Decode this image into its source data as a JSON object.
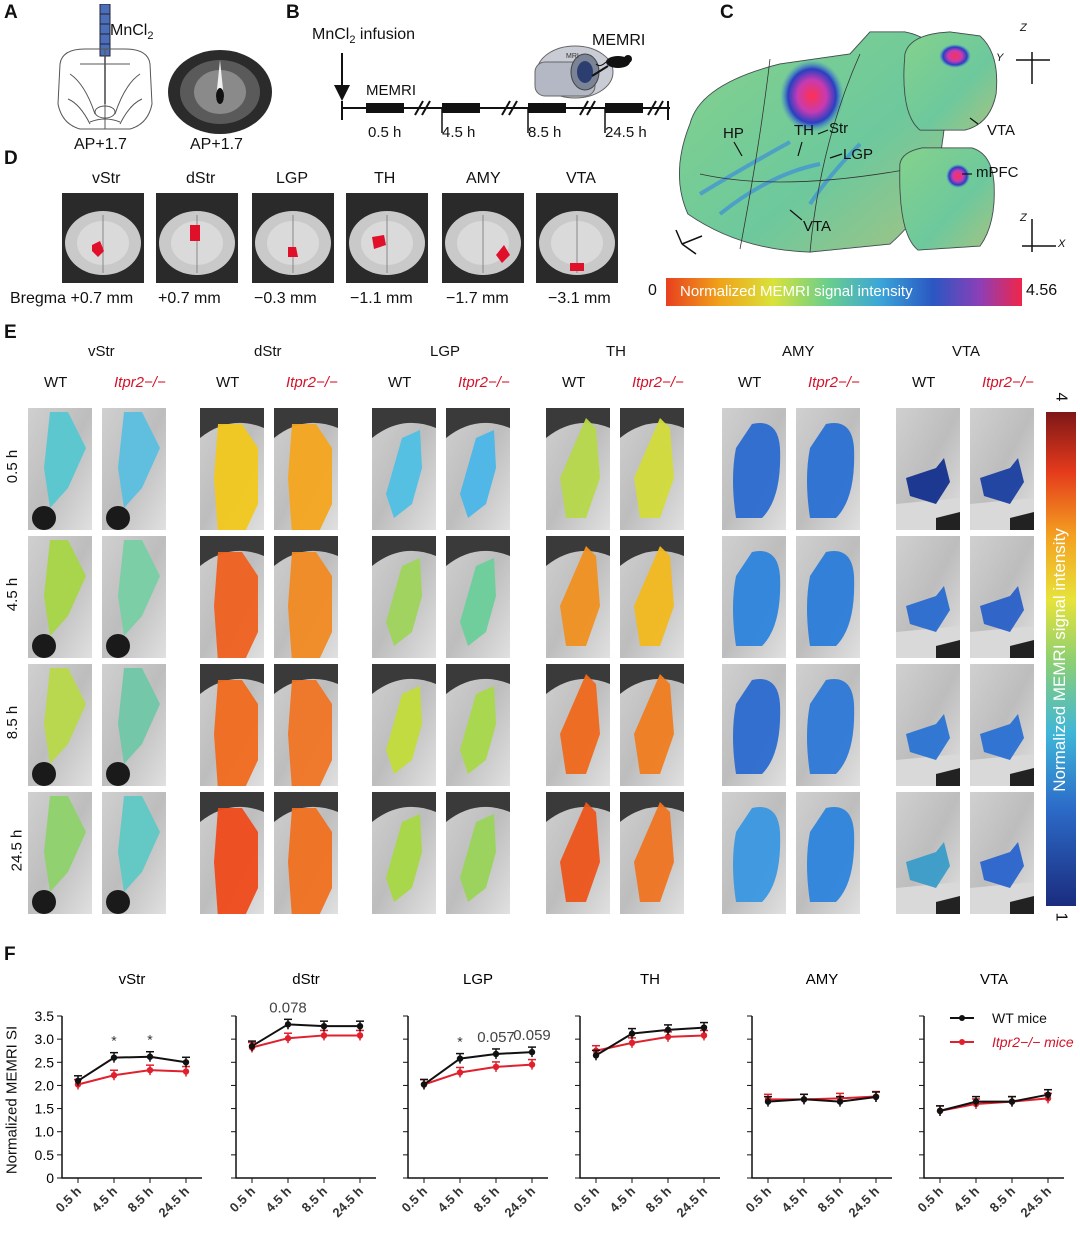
{
  "panels": {
    "A": {
      "letter": "A",
      "reagent": "MnCl",
      "reagent_sub": "2",
      "ap_left": "AP+1.7",
      "ap_right": "AP+1.7"
    },
    "B": {
      "letter": "B",
      "infusion": "MnCl",
      "infusion_sub": "2",
      "infusion_rest": " infusion",
      "memri_left": "MEMRI",
      "memri_right": "MEMRI",
      "scanner_text": "MRI",
      "times": [
        "0.5 h",
        "4.5 h",
        "8.5 h",
        "24.5 h"
      ]
    },
    "C": {
      "letter": "C",
      "labels": [
        "HP",
        "TH",
        "Str",
        "LGP",
        "VTA",
        "VTA",
        "mPFC"
      ],
      "axes": {
        "z": "Z",
        "y": "Y",
        "x": "X"
      },
      "colorbar_min": "0",
      "colorbar_label": "Normalized MEMRI signal intensity",
      "colorbar_max": "4.56"
    },
    "D": {
      "letter": "D",
      "regions": [
        "vStr",
        "dStr",
        "LGP",
        "TH",
        "AMY",
        "VTA"
      ],
      "bregma": [
        "Bregma +0.7 mm",
        "+0.7 mm",
        "−0.3 mm",
        "−1.1 mm",
        "−1.7 mm",
        "−3.1 mm"
      ]
    },
    "E": {
      "letter": "E",
      "regions": [
        "vStr",
        "dStr",
        "LGP",
        "TH",
        "AMY",
        "VTA"
      ],
      "wt": "WT",
      "ko": "Itpr2−/−",
      "times": [
        "0.5 h",
        "4.5 h",
        "8.5 h",
        "24.5 h"
      ],
      "colorbar_label": "Normalized MEMRI signal intensity",
      "colorbar_max": "4",
      "colorbar_min": "1"
    },
    "F": {
      "letter": "F",
      "ylabel": "Normalized MEMRI SI",
      "legend_wt": "WT mice",
      "legend_ko": "Itpr2−/− mice"
    }
  },
  "colors": {
    "wt": "#111111",
    "ko": "#e0202c",
    "accent_red": "#d3132a"
  },
  "chart_data": [
    {
      "type": "line",
      "title": "vStr",
      "categories": [
        "0.5 h",
        "4.5 h",
        "8.5 h",
        "24.5 h"
      ],
      "ylim": [
        0,
        3.5
      ],
      "yticks": [
        "0",
        "0.5",
        "1.0",
        "1.5",
        "2.0",
        "2.5",
        "3.0",
        "3.5"
      ],
      "series": [
        {
          "name": "WT mice",
          "values": [
            2.1,
            2.6,
            2.62,
            2.5
          ]
        },
        {
          "name": "Itpr2−/− mice",
          "values": [
            2.02,
            2.22,
            2.33,
            2.3
          ]
        }
      ],
      "annotations": [
        {
          "at": "4.5 h",
          "text": "*"
        },
        {
          "at": "8.5 h",
          "text": "*"
        }
      ]
    },
    {
      "type": "line",
      "title": "dStr",
      "categories": [
        "0.5 h",
        "4.5 h",
        "8.5 h",
        "24.5 h"
      ],
      "ylim": [
        0,
        3.5
      ],
      "series": [
        {
          "name": "WT mice",
          "values": [
            2.85,
            3.32,
            3.28,
            3.28
          ]
        },
        {
          "name": "Itpr2−/− mice",
          "values": [
            2.82,
            3.02,
            3.08,
            3.08
          ]
        }
      ],
      "annotations": [
        {
          "at": "4.5 h",
          "text": "0.078"
        }
      ]
    },
    {
      "type": "line",
      "title": "LGP",
      "categories": [
        "0.5 h",
        "4.5 h",
        "8.5 h",
        "24.5 h"
      ],
      "ylim": [
        0,
        3.5
      ],
      "series": [
        {
          "name": "WT mice",
          "values": [
            2.02,
            2.58,
            2.68,
            2.72
          ]
        },
        {
          "name": "Itpr2−/− mice",
          "values": [
            2.02,
            2.28,
            2.4,
            2.45
          ]
        }
      ],
      "annotations": [
        {
          "at": "4.5 h",
          "text": "*"
        },
        {
          "at": "8.5 h",
          "text": "0.057"
        },
        {
          "at": "24.5 h",
          "text": "0.059"
        }
      ]
    },
    {
      "type": "line",
      "title": "TH",
      "categories": [
        "0.5 h",
        "4.5 h",
        "8.5 h",
        "24.5 h"
      ],
      "ylim": [
        0,
        3.5
      ],
      "series": [
        {
          "name": "WT mice",
          "values": [
            2.65,
            3.12,
            3.2,
            3.25
          ]
        },
        {
          "name": "Itpr2−/− mice",
          "values": [
            2.75,
            2.92,
            3.05,
            3.08
          ]
        }
      ],
      "annotations": []
    },
    {
      "type": "line",
      "title": "AMY",
      "categories": [
        "0.5 h",
        "4.5 h",
        "8.5 h",
        "24.5 h"
      ],
      "ylim": [
        0,
        3.5
      ],
      "series": [
        {
          "name": "WT mice",
          "values": [
            1.65,
            1.7,
            1.65,
            1.75
          ]
        },
        {
          "name": "Itpr2−/− mice",
          "values": [
            1.7,
            1.7,
            1.72,
            1.76
          ]
        }
      ],
      "annotations": []
    },
    {
      "type": "line",
      "title": "VTA",
      "categories": [
        "0.5 h",
        "4.5 h",
        "8.5 h",
        "24.5 h"
      ],
      "ylim": [
        0,
        3.5
      ],
      "series": [
        {
          "name": "WT mice",
          "values": [
            1.45,
            1.65,
            1.65,
            1.8
          ]
        },
        {
          "name": "Itpr2−/− mice",
          "values": [
            1.45,
            1.6,
            1.65,
            1.72
          ]
        }
      ],
      "annotations": []
    }
  ]
}
